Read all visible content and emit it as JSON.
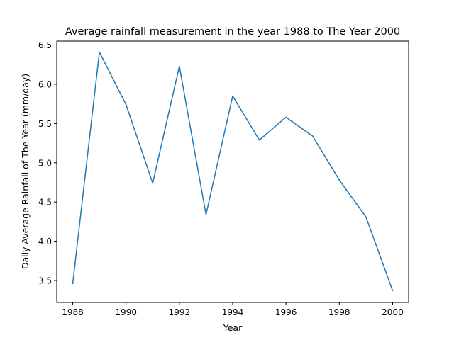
{
  "chart_data": {
    "type": "line",
    "title": "Average rainfall measurement in the year 1988 to The Year 2000",
    "xlabel": "Year",
    "ylabel": "Daily Average Rainfall of The Year (mm/day)",
    "x": [
      1988,
      1989,
      1990,
      1991,
      1992,
      1993,
      1994,
      1995,
      1996,
      1997,
      1998,
      1999,
      2000
    ],
    "series": [
      {
        "values": [
          3.46,
          6.41,
          5.74,
          4.74,
          6.23,
          4.34,
          5.85,
          5.29,
          5.58,
          5.34,
          4.78,
          4.31,
          3.37
        ],
        "color": "#1f77b4"
      }
    ],
    "xlim": [
      1987.4,
      2000.6
    ],
    "ylim": [
      3.22,
      6.55
    ],
    "xticks": [
      "1988",
      "1990",
      "1992",
      "1994",
      "1996",
      "1998",
      "2000"
    ],
    "yticks": [
      "3.5",
      "4.0",
      "4.5",
      "5.0",
      "5.5",
      "6.0",
      "6.5"
    ],
    "grid": false,
    "legend": "none"
  }
}
